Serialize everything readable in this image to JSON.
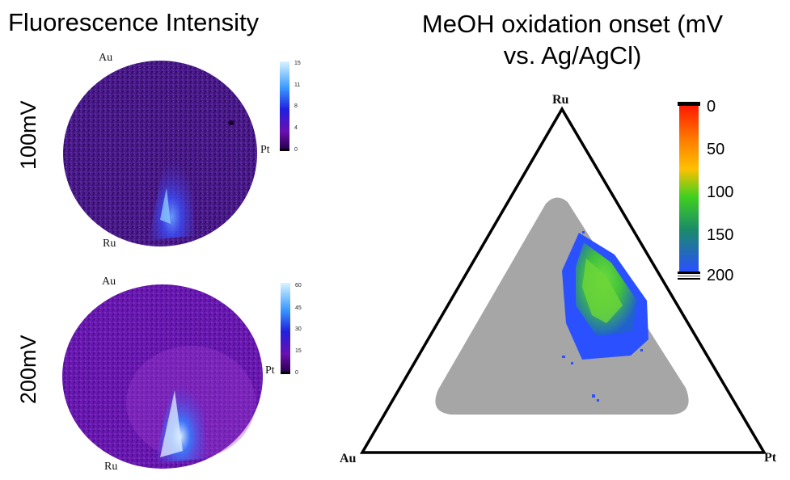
{
  "left_title": "Fluorescence Intensity",
  "right_title_line1": "MeOH oxidation onset (mV",
  "right_title_line2": "vs. Ag/AgCl)",
  "panels": [
    {
      "row_label": "100mV",
      "top_corner": "Au",
      "right_corner": "Pt",
      "bottom_corner": "Ru",
      "colorbar_ticks": [
        "15",
        "11",
        "8",
        "4",
        "0"
      ]
    },
    {
      "row_label": "200mV",
      "top_corner": "Au",
      "right_corner": "Pt",
      "bottom_corner": "Ru",
      "colorbar_ticks": [
        "60",
        "45",
        "30",
        "15",
        "0"
      ]
    }
  ],
  "ternary": {
    "top_vertex": "Ru",
    "left_vertex": "Au",
    "right_vertex": "Pt",
    "colorbar_ticks": [
      "0",
      "50",
      "100",
      "150",
      "200"
    ],
    "colors": {
      "region_gray": "#a6a6a6",
      "low": "#ff2200",
      "mid": "#4cc43a",
      "high": "#2244ff"
    }
  }
}
